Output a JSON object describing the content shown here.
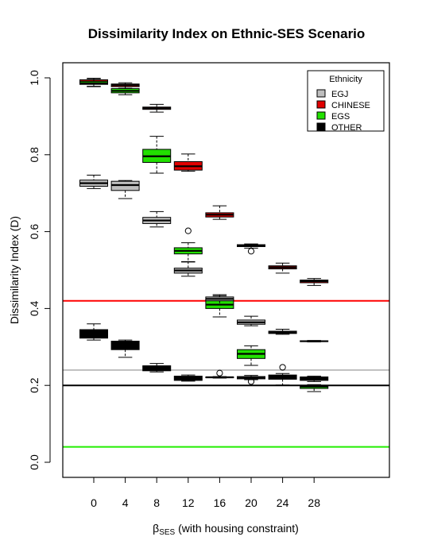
{
  "chart_data": {
    "type": "box",
    "title": "Dissimilarity Index on Ethnic-SES Scenario",
    "xlabel_symbol": "β",
    "xlabel_subscript": "SES",
    "xlabel_rest": " (with housing constraint)",
    "ylabel": "Dissimilarity Index (D)",
    "ylim": [
      -0.04,
      1.04
    ],
    "yticks": [
      "0.0",
      "0.2",
      "0.4",
      "0.6",
      "0.8",
      "1.0"
    ],
    "ytick_values": [
      0.0,
      0.2,
      0.4,
      0.6,
      0.8,
      1.0
    ],
    "categories": [
      "0",
      "4",
      "8",
      "12",
      "16",
      "20",
      "24",
      "28"
    ],
    "legend": {
      "title": "Ethnicity",
      "position": "top-right",
      "entries": [
        "EGJ",
        "CHINESE",
        "EGS",
        "OTHER"
      ]
    },
    "colors": {
      "EGJ": "#bebebe",
      "CHINESE": "#e00000",
      "EGS": "#22e000",
      "OTHER": "#000000"
    },
    "reference_lines": [
      {
        "series": "CHINESE",
        "y": 0.42,
        "color": "#ff0000"
      },
      {
        "series": "EGJ",
        "y": 0.24,
        "color": "#bebebe"
      },
      {
        "series": "OTHER",
        "y": 0.2,
        "color": "#000000"
      },
      {
        "series": "EGS",
        "y": 0.04,
        "color": "#22ee00"
      }
    ],
    "series": [
      {
        "name": "CHINESE",
        "boxes": [
          {
            "x": "0",
            "wlo": 0.978,
            "q1": 0.986,
            "med": 0.99,
            "q3": 0.995,
            "whi": 0.999,
            "out": []
          },
          {
            "x": "4",
            "wlo": 0.973,
            "q1": 0.977,
            "med": 0.981,
            "q3": 0.984,
            "whi": 0.987,
            "out": []
          },
          {
            "x": "8",
            "wlo": 0.911,
            "q1": 0.918,
            "med": 0.921,
            "q3": 0.924,
            "whi": 0.931,
            "out": []
          },
          {
            "x": "12",
            "wlo": 0.757,
            "q1": 0.76,
            "med": 0.77,
            "q3": 0.782,
            "whi": 0.802,
            "out": []
          },
          {
            "x": "16",
            "wlo": 0.632,
            "q1": 0.638,
            "med": 0.644,
            "q3": 0.649,
            "whi": 0.667,
            "out": []
          },
          {
            "x": "20",
            "wlo": 0.557,
            "q1": 0.561,
            "med": 0.563,
            "q3": 0.566,
            "whi": 0.568,
            "out": []
          },
          {
            "x": "24",
            "wlo": 0.492,
            "q1": 0.503,
            "med": 0.507,
            "q3": 0.511,
            "whi": 0.518,
            "out": []
          },
          {
            "x": "28",
            "wlo": 0.46,
            "q1": 0.467,
            "med": 0.471,
            "q3": 0.474,
            "whi": 0.478,
            "out": []
          }
        ]
      },
      {
        "name": "EGS",
        "boxes": [
          {
            "x": "0",
            "wlo": 0.977,
            "q1": 0.983,
            "med": 0.986,
            "q3": 0.991,
            "whi": 0.996,
            "out": []
          },
          {
            "x": "4",
            "wlo": 0.956,
            "q1": 0.961,
            "med": 0.966,
            "q3": 0.972,
            "whi": 0.981,
            "out": []
          },
          {
            "x": "8",
            "wlo": 0.752,
            "q1": 0.78,
            "med": 0.796,
            "q3": 0.814,
            "whi": 0.848,
            "out": []
          },
          {
            "x": "12",
            "wlo": 0.521,
            "q1": 0.542,
            "med": 0.55,
            "q3": 0.558,
            "whi": 0.571,
            "out": []
          },
          {
            "x": "16",
            "wlo": 0.378,
            "q1": 0.4,
            "med": 0.41,
            "q3": 0.424,
            "whi": 0.433,
            "out": []
          },
          {
            "x": "20",
            "wlo": 0.252,
            "q1": 0.27,
            "med": 0.282,
            "q3": 0.293,
            "whi": 0.303,
            "out": []
          },
          {
            "x": "28",
            "wlo": 0.184,
            "q1": 0.192,
            "med": 0.197,
            "q3": 0.2,
            "whi": 0.202,
            "out": []
          }
        ]
      },
      {
        "name": "EGJ",
        "boxes": [
          {
            "x": "0",
            "wlo": 0.712,
            "q1": 0.718,
            "med": 0.726,
            "q3": 0.734,
            "whi": 0.747,
            "out": []
          },
          {
            "x": "4",
            "wlo": 0.686,
            "q1": 0.707,
            "med": 0.721,
            "q3": 0.731,
            "whi": 0.733,
            "out": []
          },
          {
            "x": "8",
            "wlo": 0.612,
            "q1": 0.621,
            "med": 0.629,
            "q3": 0.637,
            "whi": 0.652,
            "out": []
          },
          {
            "x": "12",
            "wlo": 0.484,
            "q1": 0.492,
            "med": 0.499,
            "q3": 0.505,
            "whi": 0.522,
            "out": [
              0.602
            ]
          },
          {
            "x": "16",
            "wlo": 0.41,
            "q1": 0.42,
            "med": 0.425,
            "q3": 0.43,
            "whi": 0.436,
            "out": []
          },
          {
            "x": "20",
            "wlo": 0.355,
            "q1": 0.359,
            "med": 0.364,
            "q3": 0.37,
            "whi": 0.38,
            "out": [
              0.549
            ]
          },
          {
            "x": "24",
            "wlo": 0.333,
            "q1": 0.335,
            "med": 0.338,
            "q3": 0.341,
            "whi": 0.346,
            "out": []
          },
          {
            "x": "28",
            "wlo": 0.313,
            "q1": 0.314,
            "med": 0.315,
            "q3": 0.316,
            "whi": 0.317,
            "out": []
          }
        ]
      },
      {
        "name": "OTHER",
        "boxes": [
          {
            "x": "0",
            "wlo": 0.318,
            "q1": 0.323,
            "med": 0.333,
            "q3": 0.345,
            "whi": 0.36,
            "out": []
          },
          {
            "x": "4",
            "wlo": 0.273,
            "q1": 0.293,
            "med": 0.303,
            "q3": 0.315,
            "whi": 0.318,
            "out": []
          },
          {
            "x": "8",
            "wlo": 0.235,
            "q1": 0.238,
            "med": 0.245,
            "q3": 0.251,
            "whi": 0.257,
            "out": []
          },
          {
            "x": "12",
            "wlo": 0.211,
            "q1": 0.213,
            "med": 0.218,
            "q3": 0.224,
            "whi": 0.227,
            "out": []
          },
          {
            "x": "16",
            "wlo": 0.219,
            "q1": 0.22,
            "med": 0.221,
            "q3": 0.222,
            "whi": 0.223,
            "out": [
              0.232
            ]
          },
          {
            "x": "20",
            "wlo": 0.215,
            "q1": 0.217,
            "med": 0.22,
            "q3": 0.223,
            "whi": 0.226,
            "out": [
              0.21
            ]
          },
          {
            "x": "24",
            "wlo": 0.201,
            "q1": 0.216,
            "med": 0.221,
            "q3": 0.227,
            "whi": 0.231,
            "out": [
              0.247
            ]
          },
          {
            "x": "28",
            "wlo": 0.21,
            "q1": 0.213,
            "med": 0.218,
            "q3": 0.222,
            "whi": 0.224,
            "out": []
          }
        ]
      }
    ]
  }
}
